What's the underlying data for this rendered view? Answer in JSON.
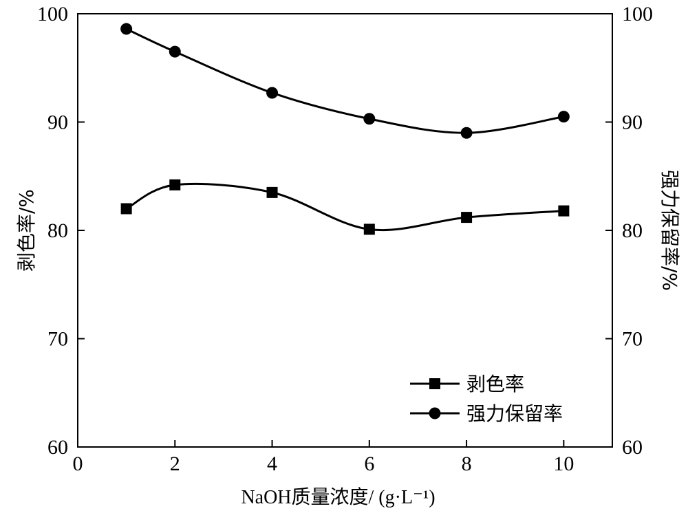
{
  "chart_data": {
    "type": "line",
    "xlabel": "NaOH质量浓度/ (g·L⁻¹)",
    "ylabel_left": "剥色率/%",
    "ylabel_right": "强力保留率/%",
    "xlim": [
      0,
      11
    ],
    "ylim": [
      60,
      100
    ],
    "x_ticks": [
      "0",
      "2",
      "4",
      "6",
      "8",
      "10"
    ],
    "y_ticks": [
      "60",
      "70",
      "80",
      "90",
      "100"
    ],
    "grid": false,
    "legend_position": "bottom-right",
    "x": [
      1,
      2,
      4,
      6,
      8,
      10
    ],
    "series": [
      {
        "name": "剥色率",
        "marker": "square",
        "axis": "left",
        "values": [
          82.0,
          84.2,
          83.5,
          80.1,
          81.2,
          81.8
        ]
      },
      {
        "name": "强力保留率",
        "marker": "circle",
        "axis": "right",
        "values": [
          98.6,
          96.5,
          92.7,
          90.3,
          89.0,
          90.5
        ]
      }
    ],
    "colors": {
      "line": "#000000",
      "background": "#ffffff"
    }
  }
}
